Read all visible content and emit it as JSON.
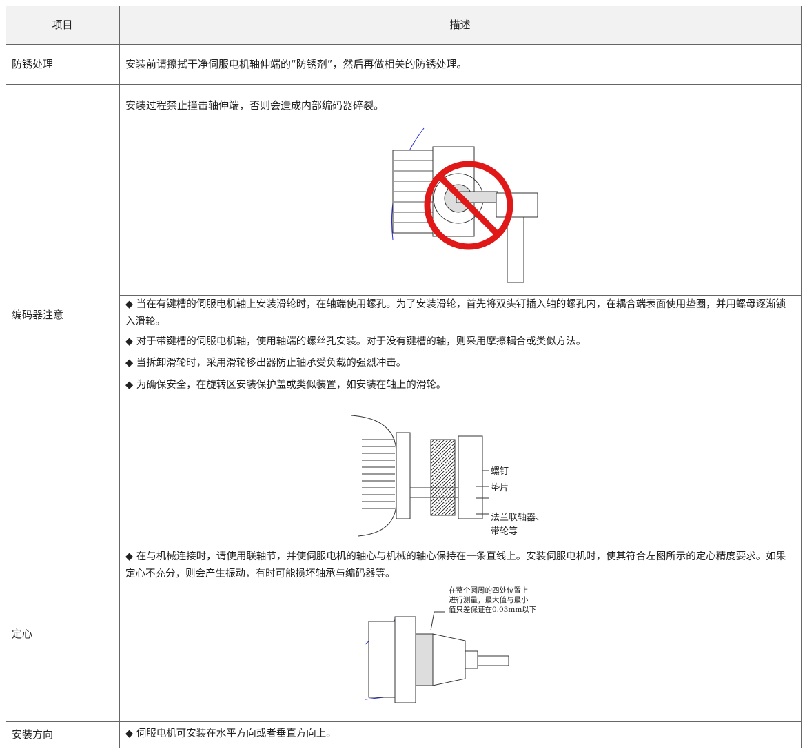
{
  "table": {
    "header": [
      "项目",
      "描述"
    ],
    "rows": [
      {
        "item": "防锈处理",
        "description": [
          "安装前请擦拭干净伺服电机轴伸端的“防锈剂”，然后再做相关的防锈处理。"
        ]
      },
      {
        "item": "编码器注意",
        "description": [
          "安装过程禁止撞击轴伸端，否则会造成内部编码器碎裂。"
        ],
        "bullets": [
          "◆  当在有键槽的伺服电机轴上安装滑轮时，在轴端使用螺孔。为了安装滑轮，首先将双头钉插入轴的螺孔内，在耦合端表面使用垫圈，并用螺母逐渐锁入滑轮。",
          "◆  对于带键槽的伺服电机轴，使用轴端的螺丝孔安装。对于没有键槽的轴，则采用摩擦耦合或类似方法。",
          "◆  当拆卸滑轮时，采用滑轮移出器防止轴承受负载的强烈冲击。",
          "◆  为确保安全，在旋转区安装保护盖或类似装置，如安装在轴上的滑轮。"
        ],
        "figure_labels": [
          "螺钉",
          "垫片",
          "法兰联轴器、",
          "带轮等"
        ]
      },
      {
        "item": "定心",
        "bullets": [
          "◆  在与机械连接时，请使用联轴节，并使伺服电机的轴心与机械的轴心保持在一条直线上。安装伺服电机时，使其符合左图所示的定心精度要求。如果定心不充分，则会产生振动，有时可能损坏轴承与编码器等。"
        ],
        "figure_labels": [
          "在整个圆周的四处位置上",
          "进行测量，最大值与最小",
          "值只差保证在0.03mm以下"
        ]
      },
      {
        "item": "安装方向",
        "bullets": [
          "◆  伺服电机可安装在水平方向或者垂直方向上。"
        ]
      }
    ]
  }
}
